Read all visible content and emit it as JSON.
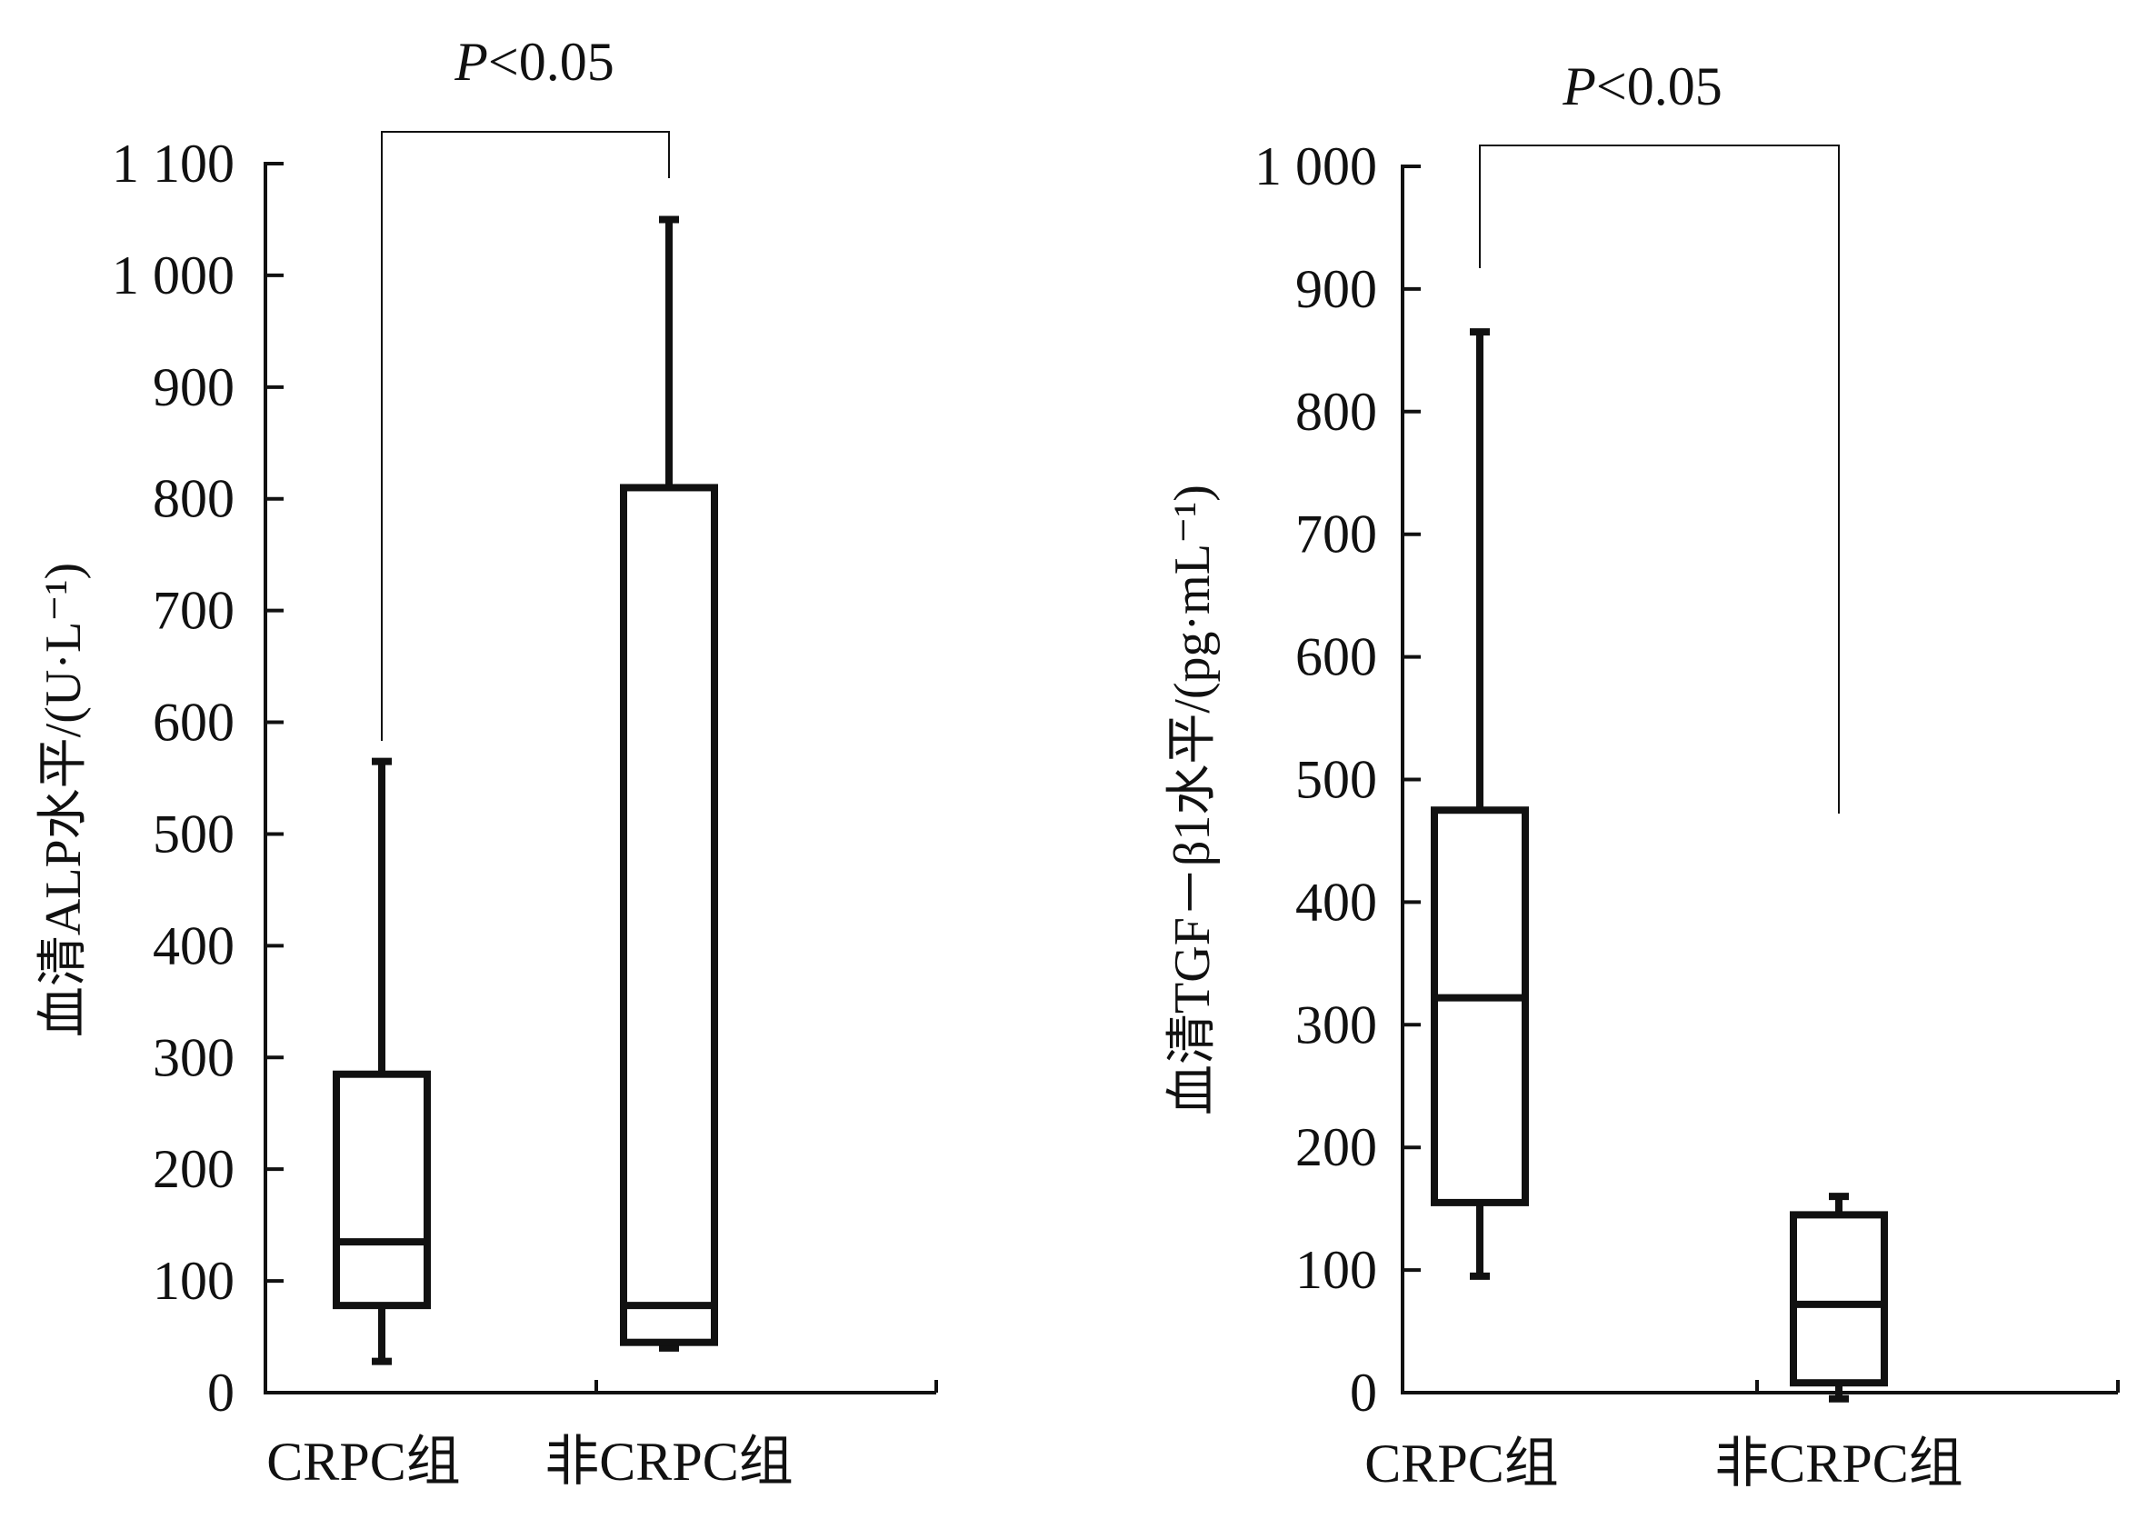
{
  "chart_data": [
    {
      "type": "boxplot",
      "ylabel": "血清ALP水平/(U·L⁻¹)",
      "categories": [
        "CRPC组",
        "非CRPC组"
      ],
      "yticks": [
        0,
        100,
        200,
        300,
        400,
        500,
        600,
        700,
        800,
        900,
        1000,
        1100
      ],
      "ytick_labels": [
        "0",
        "100",
        "200",
        "300",
        "400",
        "500",
        "600",
        "700",
        "800",
        "900",
        "1 000",
        "1 100"
      ],
      "ylim": [
        0,
        1100
      ],
      "boxes": [
        {
          "category": "CRPC组",
          "min": 28,
          "q1": 78,
          "median": 135,
          "q3": 285,
          "max": 565
        },
        {
          "category": "非CRPC组",
          "min": 40,
          "q1": 45,
          "median": 78,
          "q3": 810,
          "max": 1050
        }
      ],
      "significance": {
        "label": "P<0.05",
        "italic_prefix": "P",
        "rest": "<0.05"
      }
    },
    {
      "type": "boxplot",
      "ylabel": "血清TGF－β1水平/(pg·mL⁻¹)",
      "categories": [
        "CRPC组",
        "非CRPC组"
      ],
      "yticks": [
        0,
        100,
        200,
        300,
        400,
        500,
        600,
        700,
        800,
        900,
        1000
      ],
      "ytick_labels": [
        "0",
        "100",
        "200",
        "300",
        "400",
        "500",
        "600",
        "700",
        "800",
        "900",
        "1 000"
      ],
      "ylim": [
        0,
        1000
      ],
      "boxes": [
        {
          "category": "CRPC组",
          "min": 95,
          "q1": 155,
          "median": 322,
          "q3": 475,
          "max": 865
        },
        {
          "category": "非CRPC组",
          "min": -5,
          "q1": 8,
          "median": 72,
          "q3": 145,
          "max": 160
        }
      ],
      "significance": {
        "label": "P<0.05",
        "italic_prefix": "P",
        "rest": "<0.05"
      }
    }
  ],
  "colors": {
    "ink": "#111111",
    "background": "#ffffff"
  }
}
